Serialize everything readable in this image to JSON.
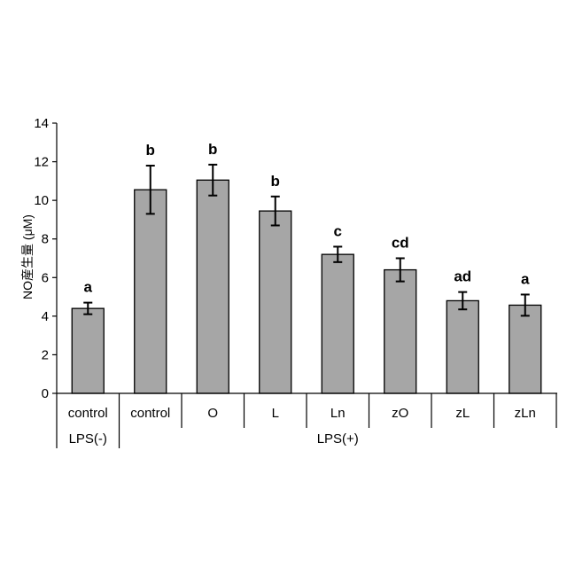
{
  "chart_data": {
    "type": "bar",
    "title": "",
    "ylabel": "NO産生量 (μM)",
    "xlabel": "",
    "ylim": [
      0,
      14
    ],
    "yticks": [
      0,
      2,
      4,
      6,
      8,
      10,
      12,
      14
    ],
    "grid": false,
    "legend": "none",
    "bar_color": "#a6a6a6",
    "bar_edge_color": "#000000",
    "categories": [
      "control",
      "control",
      "O",
      "L",
      "Ln",
      "zO",
      "zL",
      "zLn"
    ],
    "values": [
      4.4,
      10.55,
      11.05,
      9.45,
      7.2,
      6.4,
      4.8,
      4.57
    ],
    "errors": [
      0.3,
      1.25,
      0.8,
      0.75,
      0.4,
      0.6,
      0.45,
      0.55
    ],
    "significance": [
      "a",
      "b",
      "b",
      "b",
      "c",
      "cd",
      "ad",
      "a"
    ],
    "groups": [
      {
        "label": "LPS(-)",
        "start": 0,
        "end": 0
      },
      {
        "label": "LPS(+)",
        "start": 1,
        "end": 7
      }
    ]
  }
}
